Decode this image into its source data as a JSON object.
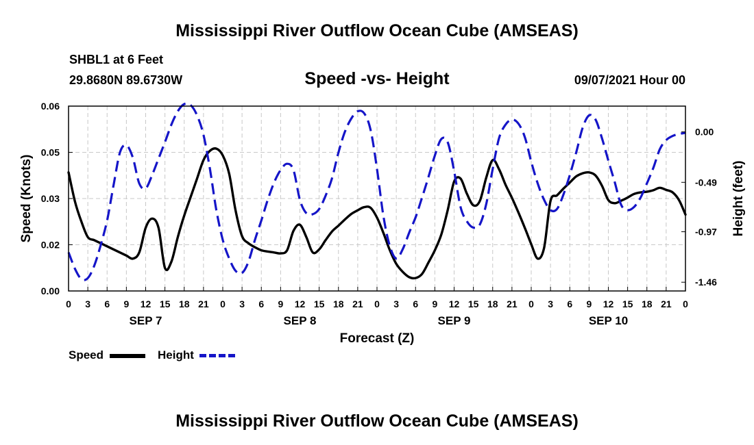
{
  "header": {
    "title_top": "Mississippi River Outflow Ocean Cube (AMSEAS)",
    "title_bottom": "Mississippi River Outflow Ocean Cube (AMSEAS)",
    "station": "SHBL1 at 6 Feet",
    "coords": "29.8680N  89.6730W",
    "run": "09/07/2021 Hour 00"
  },
  "colors": {
    "speed": "#000000",
    "height": "#1515c8",
    "grid": "#c8c8c8"
  },
  "legend": {
    "speed_label": "Speed",
    "height_label": "Height"
  },
  "chart_data": {
    "type": "line",
    "title": "Speed -vs- Height",
    "xlabel": "Forecast (Z)",
    "ylabel": "Speed (Knots)",
    "y2label": "Height (feet)",
    "xlim": [
      0,
      96
    ],
    "ylim": [
      0.0,
      0.06
    ],
    "y2lim": [
      -1.545,
      0.25
    ],
    "y_ticks": [
      {
        "value": 0.0,
        "label": "0.00"
      },
      {
        "value": 0.015,
        "label": "0.02"
      },
      {
        "value": 0.03,
        "label": "0.03"
      },
      {
        "value": 0.045,
        "label": "0.05"
      },
      {
        "value": 0.06,
        "label": "0.06"
      }
    ],
    "y2_ticks": [
      {
        "value": 0.0,
        "label": "0.00"
      },
      {
        "value": -0.49,
        "label": "-0.49"
      },
      {
        "value": -0.97,
        "label": "-0.97"
      },
      {
        "value": -1.46,
        "label": "-1.46"
      }
    ],
    "x_ticks": [
      {
        "value": 0,
        "label": "0"
      },
      {
        "value": 3,
        "label": "3"
      },
      {
        "value": 6,
        "label": "6"
      },
      {
        "value": 9,
        "label": "9"
      },
      {
        "value": 12,
        "label": "12"
      },
      {
        "value": 15,
        "label": "15"
      },
      {
        "value": 18,
        "label": "18"
      },
      {
        "value": 21,
        "label": "21"
      },
      {
        "value": 24,
        "label": "0"
      },
      {
        "value": 27,
        "label": "3"
      },
      {
        "value": 30,
        "label": "6"
      },
      {
        "value": 33,
        "label": "9"
      },
      {
        "value": 36,
        "label": "12"
      },
      {
        "value": 39,
        "label": "15"
      },
      {
        "value": 42,
        "label": "18"
      },
      {
        "value": 45,
        "label": "21"
      },
      {
        "value": 48,
        "label": "0"
      },
      {
        "value": 51,
        "label": "3"
      },
      {
        "value": 54,
        "label": "6"
      },
      {
        "value": 57,
        "label": "9"
      },
      {
        "value": 60,
        "label": "12"
      },
      {
        "value": 63,
        "label": "15"
      },
      {
        "value": 66,
        "label": "18"
      },
      {
        "value": 69,
        "label": "21"
      },
      {
        "value": 72,
        "label": "0"
      },
      {
        "value": 75,
        "label": "3"
      },
      {
        "value": 78,
        "label": "6"
      },
      {
        "value": 81,
        "label": "9"
      },
      {
        "value": 84,
        "label": "12"
      },
      {
        "value": 87,
        "label": "15"
      },
      {
        "value": 90,
        "label": "18"
      },
      {
        "value": 93,
        "label": "21"
      },
      {
        "value": 96,
        "label": "0"
      }
    ],
    "day_labels": [
      {
        "x": 12,
        "label": "SEP 7"
      },
      {
        "x": 36,
        "label": "SEP 8"
      },
      {
        "x": 60,
        "label": "SEP 9"
      },
      {
        "x": 84,
        "label": "SEP 10"
      }
    ],
    "series": [
      {
        "name": "Speed",
        "axis": "left",
        "x": [
          0,
          1,
          2,
          3,
          4,
          5,
          6,
          7,
          8,
          9,
          10,
          11,
          12,
          13,
          14,
          15,
          16,
          17,
          18,
          19,
          20,
          21,
          22,
          23,
          24,
          25,
          26,
          27,
          28,
          29,
          30,
          31,
          32,
          33,
          34,
          35,
          36,
          37,
          38,
          39,
          40,
          41,
          42,
          43,
          44,
          45,
          46,
          47,
          48,
          49,
          50,
          51,
          52,
          53,
          54,
          55,
          56,
          57,
          58,
          59,
          60,
          61,
          62,
          63,
          64,
          65,
          66,
          67,
          68,
          69,
          70,
          71,
          72,
          73,
          74,
          75,
          76,
          77,
          78,
          79,
          80,
          81,
          82,
          83,
          84,
          85,
          86,
          87,
          88,
          89,
          90,
          91,
          92,
          93,
          94,
          95,
          96
        ],
        "values": [
          0.0385,
          0.029,
          0.0225,
          0.0175,
          0.0165,
          0.0155,
          0.0145,
          0.0135,
          0.0125,
          0.0115,
          0.0105,
          0.0125,
          0.0205,
          0.0235,
          0.0205,
          0.0075,
          0.0095,
          0.0175,
          0.0245,
          0.0305,
          0.0365,
          0.0425,
          0.0455,
          0.0462,
          0.044,
          0.038,
          0.026,
          0.0178,
          0.0155,
          0.0142,
          0.0132,
          0.0128,
          0.0125,
          0.0122,
          0.0132,
          0.0195,
          0.0215,
          0.0175,
          0.0125,
          0.0135,
          0.0165,
          0.0193,
          0.0212,
          0.0232,
          0.025,
          0.0262,
          0.0272,
          0.027,
          0.0238,
          0.0188,
          0.0132,
          0.0088,
          0.0062,
          0.0045,
          0.0042,
          0.0055,
          0.0092,
          0.0132,
          0.0183,
          0.0262,
          0.0355,
          0.0365,
          0.0315,
          0.0278,
          0.0292,
          0.0368,
          0.0425,
          0.0395,
          0.0345,
          0.0302,
          0.0255,
          0.0205,
          0.0152,
          0.0105,
          0.014,
          0.0292,
          0.031,
          0.0332,
          0.0352,
          0.0372,
          0.0382,
          0.0385,
          0.0375,
          0.0342,
          0.0295,
          0.0285,
          0.0293,
          0.0303,
          0.0315,
          0.032,
          0.0322,
          0.0327,
          0.0335,
          0.0328,
          0.032,
          0.0295,
          0.0248
        ]
      },
      {
        "name": "Height",
        "axis": "right",
        "x": [
          0,
          1,
          2,
          3,
          4,
          5,
          6,
          7,
          8,
          9,
          10,
          11,
          12,
          13,
          14,
          15,
          16,
          17,
          18,
          19,
          20,
          21,
          22,
          23,
          24,
          25,
          26,
          27,
          28,
          29,
          30,
          31,
          32,
          33,
          34,
          35,
          36,
          37,
          38,
          39,
          40,
          41,
          42,
          43,
          44,
          45,
          46,
          47,
          48,
          49,
          50,
          51,
          52,
          53,
          54,
          55,
          56,
          57,
          58,
          59,
          60,
          61,
          62,
          63,
          64,
          65,
          66,
          67,
          68,
          69,
          70,
          71,
          72,
          73,
          74,
          75,
          76,
          77,
          78,
          79,
          80,
          81,
          82,
          83,
          84,
          85,
          86,
          87,
          88,
          89,
          90,
          91,
          92,
          93,
          94,
          95,
          96
        ],
        "values": [
          -1.17,
          -1.33,
          -1.43,
          -1.42,
          -1.3,
          -1.1,
          -0.86,
          -0.52,
          -0.2,
          -0.13,
          -0.25,
          -0.5,
          -0.55,
          -0.42,
          -0.26,
          -0.1,
          0.07,
          0.2,
          0.27,
          0.26,
          0.16,
          -0.03,
          -0.36,
          -0.76,
          -1.05,
          -1.23,
          -1.35,
          -1.37,
          -1.26,
          -1.05,
          -0.86,
          -0.66,
          -0.49,
          -0.37,
          -0.31,
          -0.37,
          -0.66,
          -0.79,
          -0.8,
          -0.75,
          -0.62,
          -0.45,
          -0.2,
          0.0,
          0.13,
          0.2,
          0.18,
          0.02,
          -0.36,
          -0.82,
          -1.11,
          -1.23,
          -1.14,
          -0.98,
          -0.83,
          -0.64,
          -0.44,
          -0.23,
          -0.07,
          -0.1,
          -0.38,
          -0.73,
          -0.87,
          -0.93,
          -0.9,
          -0.7,
          -0.36,
          -0.06,
          0.07,
          0.12,
          0.08,
          -0.05,
          -0.29,
          -0.5,
          -0.66,
          -0.76,
          -0.75,
          -0.61,
          -0.42,
          -0.2,
          0.04,
          0.16,
          0.12,
          -0.06,
          -0.28,
          -0.49,
          -0.71,
          -0.76,
          -0.73,
          -0.64,
          -0.5,
          -0.35,
          -0.17,
          -0.08,
          -0.04,
          -0.02,
          -0.01
        ]
      }
    ]
  }
}
